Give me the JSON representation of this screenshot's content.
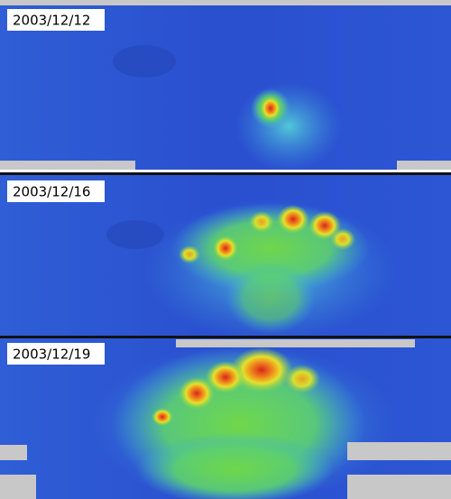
{
  "panels": [
    {
      "date": "2003/12/12"
    },
    {
      "date": "2003/12/16"
    },
    {
      "date": "2003/12/19"
    }
  ]
}
